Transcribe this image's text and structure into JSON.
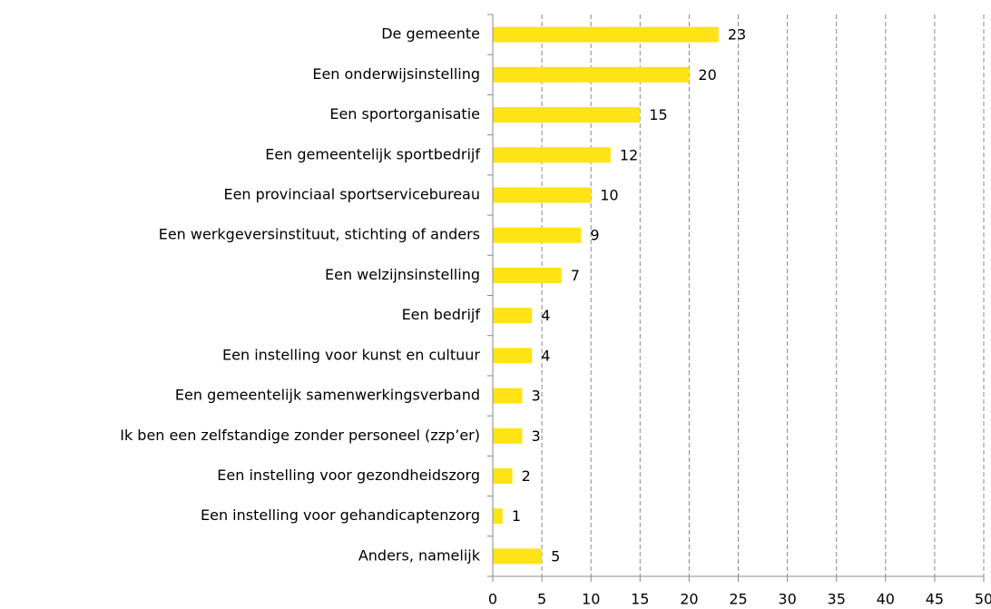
{
  "chart_data": {
    "type": "bar",
    "orientation": "horizontal",
    "categories": [
      "De gemeente",
      "Een onderwijsinstelling",
      "Een sportorganisatie",
      "Een gemeentelijk sportbedrijf",
      "Een provinciaal sportservicebureau",
      "Een werkgeversinstituut, stichting of anders",
      "Een welzijnsinstelling",
      "Een bedrijf",
      "Een instelling voor kunst en cultuur",
      "Een gemeentelijk samenwerkingsverband",
      "Ik ben een zelfstandige zonder personeel (zzp’er)",
      "Een instelling voor gezondheidszorg",
      "Een instelling voor gehandicaptenzorg",
      "Anders, namelijk"
    ],
    "values": [
      23,
      20,
      15,
      12,
      10,
      9,
      7,
      4,
      4,
      3,
      3,
      2,
      1,
      5
    ],
    "color": "#ffe314",
    "xlim": [
      0,
      50
    ],
    "xticks": [
      0,
      5,
      10,
      15,
      20,
      25,
      30,
      35,
      40,
      45,
      50
    ],
    "grid": true
  }
}
